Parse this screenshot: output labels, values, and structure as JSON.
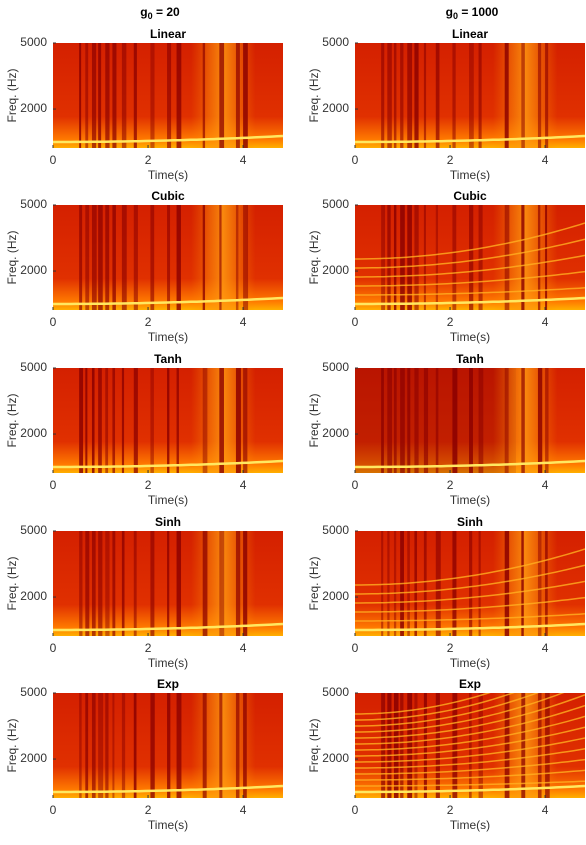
{
  "column_titles": [
    {
      "base": "g",
      "sub": "0",
      "text": " = 20"
    },
    {
      "base": "g",
      "sub": "0",
      "text": " = 1000"
    }
  ],
  "chart_data": [
    {
      "type": "spectrogram",
      "title": "Linear",
      "xlabel": "Time(s)",
      "ylabel": "Freq. (Hz)",
      "xlim": [
        0,
        4.84
      ],
      "ylim": [
        230,
        5000
      ],
      "xticks": [
        0,
        2,
        4
      ],
      "yticks": [
        2000,
        5000
      ]
    },
    {
      "type": "spectrogram",
      "title": "Linear",
      "xlabel": "Time(s)",
      "ylabel": "Freq. (Hz)",
      "xlim": [
        0,
        4.84
      ],
      "ylim": [
        230,
        5000
      ],
      "xticks": [
        0,
        2,
        4
      ],
      "yticks": [
        2000,
        5000
      ]
    },
    {
      "type": "spectrogram",
      "title": "Cubic",
      "xlabel": "Time(s)",
      "ylabel": "Freq. (Hz)",
      "xlim": [
        0,
        4.84
      ],
      "ylim": [
        230,
        5000
      ],
      "xticks": [
        0,
        2,
        4
      ],
      "yticks": [
        2000,
        5000
      ]
    },
    {
      "type": "spectrogram",
      "title": "Cubic",
      "xlabel": "Time(s)",
      "ylabel": "Freq. (Hz)",
      "xlim": [
        0,
        4.84
      ],
      "ylim": [
        230,
        5000
      ],
      "xticks": [
        0,
        2,
        4
      ],
      "yticks": [
        2000,
        5000
      ]
    },
    {
      "type": "spectrogram",
      "title": "Tanh",
      "xlabel": "Time(s)",
      "ylabel": "Freq. (Hz)",
      "xlim": [
        0,
        4.84
      ],
      "ylim": [
        230,
        5000
      ],
      "xticks": [
        0,
        2,
        4
      ],
      "yticks": [
        2000,
        5000
      ]
    },
    {
      "type": "spectrogram",
      "title": "Tanh",
      "xlabel": "Time(s)",
      "ylabel": "Freq. (Hz)",
      "xlim": [
        0,
        4.84
      ],
      "ylim": [
        230,
        5000
      ],
      "xticks": [
        0,
        2,
        4
      ],
      "yticks": [
        2000,
        5000
      ]
    },
    {
      "type": "spectrogram",
      "title": "Sinh",
      "xlabel": "Time(s)",
      "ylabel": "Freq. (Hz)",
      "xlim": [
        0,
        4.84
      ],
      "ylim": [
        230,
        5000
      ],
      "xticks": [
        0,
        2,
        4
      ],
      "yticks": [
        2000,
        5000
      ]
    },
    {
      "type": "spectrogram",
      "title": "Sinh",
      "xlabel": "Time(s)",
      "ylabel": "Freq. (Hz)",
      "xlim": [
        0,
        4.84
      ],
      "ylim": [
        230,
        5000
      ],
      "xticks": [
        0,
        2,
        4
      ],
      "yticks": [
        2000,
        5000
      ]
    },
    {
      "type": "spectrogram",
      "title": "Exp",
      "xlabel": "Time(s)",
      "ylabel": "Freq. (Hz)",
      "xlim": [
        0,
        4.84
      ],
      "ylim": [
        230,
        5000
      ],
      "xticks": [
        0,
        2,
        4
      ],
      "yticks": [
        2000,
        5000
      ]
    },
    {
      "type": "spectrogram",
      "title": "Exp",
      "xlabel": "Time(s)",
      "ylabel": "Freq. (Hz)",
      "xlim": [
        0,
        4.84
      ],
      "ylim": [
        230,
        5000
      ],
      "xticks": [
        0,
        2,
        4
      ],
      "yticks": [
        2000,
        5000
      ]
    }
  ]
}
